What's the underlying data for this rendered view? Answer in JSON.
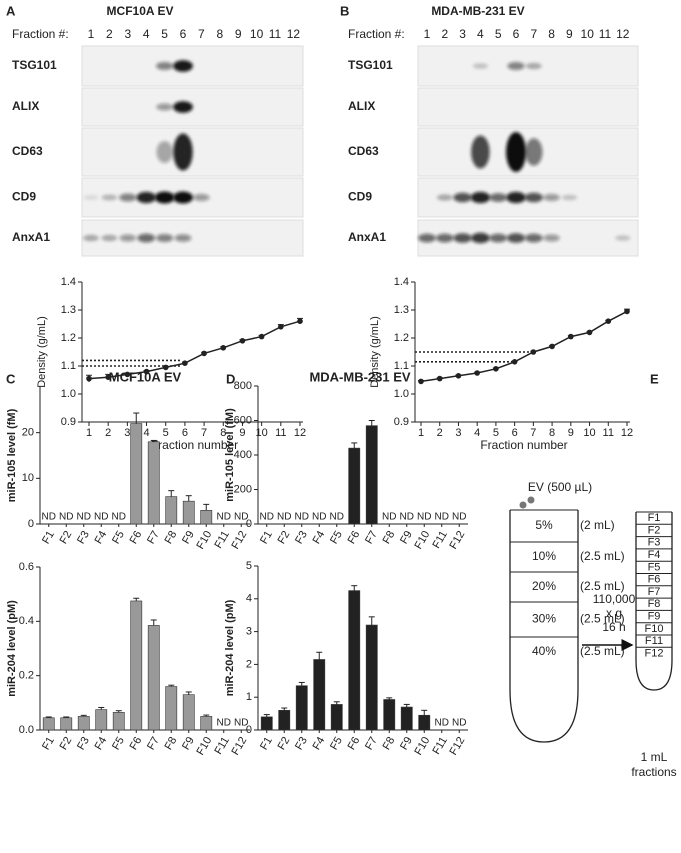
{
  "panels": [
    "A",
    "B",
    "C",
    "D",
    "E"
  ],
  "blots": [
    {
      "title": "MCF10A EV",
      "fraction_label": "Fraction #:",
      "fractions": [
        "1",
        "2",
        "3",
        "4",
        "5",
        "6",
        "7",
        "8",
        "9",
        "10",
        "11",
        "12"
      ],
      "rows": [
        "TSG101",
        "ALIX",
        "CD63",
        "CD9",
        "AnxA1"
      ]
    },
    {
      "title": "MDA-MB-231 EV",
      "fraction_label": "Fraction #:",
      "fractions": [
        "1",
        "2",
        "3",
        "4",
        "5",
        "6",
        "7",
        "8",
        "9",
        "10",
        "11",
        "12"
      ],
      "rows": [
        "TSG101",
        "ALIX",
        "CD63",
        "CD9",
        "AnxA1"
      ]
    }
  ],
  "chart_data": [
    {
      "type": "line",
      "xlabel": "Fraction number",
      "ylabel": "Density (g/mL)",
      "color": "#222222",
      "x": [
        1,
        2,
        3,
        4,
        5,
        6,
        7,
        8,
        9,
        10,
        11,
        12
      ],
      "values": [
        1.055,
        1.06,
        1.07,
        1.08,
        1.095,
        1.11,
        1.145,
        1.165,
        1.19,
        1.205,
        1.24,
        1.26
      ],
      "errors": [
        0.012,
        0.01,
        0.004,
        0.004,
        0.004,
        0.004,
        0.004,
        0.004,
        0.004,
        0.004,
        0.008,
        0.01
      ],
      "hlines": [
        {
          "y": 1.12,
          "x_end": 5.8
        },
        {
          "y": 1.1,
          "x_end": 5.8
        }
      ],
      "xlim": [
        1,
        12
      ],
      "ylim": [
        0.9,
        1.4
      ],
      "xticks": [
        1,
        2,
        3,
        4,
        5,
        6,
        7,
        8,
        9,
        10,
        11,
        12
      ],
      "yticks": [
        0.9,
        {
          "value": 1,
          "label": "1.0"
        },
        1.1,
        1.2,
        1.3,
        1.4
      ]
    },
    {
      "type": "line",
      "xlabel": "Fraction number",
      "ylabel": "Density (g/mL)",
      "color": "#222222",
      "x": [
        1,
        2,
        3,
        4,
        5,
        6,
        7,
        8,
        9,
        10,
        11,
        12
      ],
      "values": [
        1.045,
        1.055,
        1.065,
        1.075,
        1.09,
        1.115,
        1.15,
        1.17,
        1.205,
        1.22,
        1.26,
        1.295
      ],
      "errors": [
        0.003,
        0.003,
        0.003,
        0.003,
        0.003,
        0.003,
        0.003,
        0.003,
        0.003,
        0.003,
        0.003,
        0.008
      ],
      "hlines": [
        {
          "y": 1.15,
          "x_end": 7
        },
        {
          "y": 1.115,
          "x_end": 6
        }
      ],
      "xlim": [
        1,
        12
      ],
      "ylim": [
        0.9,
        1.4
      ],
      "xticks": [
        1,
        2,
        3,
        4,
        5,
        6,
        7,
        8,
        9,
        10,
        11,
        12
      ],
      "yticks": [
        0.9,
        {
          "value": 1,
          "label": "1.0"
        },
        1.1,
        1.2,
        1.3,
        1.4
      ]
    },
    {
      "type": "bar",
      "title": "MCF10A EV",
      "ylabel": "miR-105 level (fM)",
      "color": "#999999",
      "categories": [
        "F1",
        "F2",
        "F3",
        "F4",
        "F5",
        "F6",
        "F7",
        "F8",
        "F9",
        "F10",
        "F11",
        "F12"
      ],
      "values": [
        null,
        null,
        null,
        null,
        null,
        22,
        18,
        6,
        5,
        3,
        null,
        null
      ],
      "value_labels": [
        "ND",
        "ND",
        "ND",
        "ND",
        "ND",
        null,
        null,
        null,
        null,
        null,
        "ND",
        "ND"
      ],
      "errors": [
        null,
        null,
        null,
        null,
        null,
        2.3,
        0.3,
        1.3,
        1.2,
        1.3,
        null,
        null
      ],
      "ylim": [
        0,
        30
      ],
      "yticks": [
        0,
        10,
        20
      ]
    },
    {
      "type": "bar",
      "ylabel": "miR-204 level (pM)",
      "color": "#999999",
      "categories": [
        "F1",
        "F2",
        "F3",
        "F4",
        "F5",
        "F6",
        "F7",
        "F8",
        "F9",
        "F10",
        "F11",
        "F12"
      ],
      "values": [
        0.045,
        0.045,
        0.05,
        0.075,
        0.065,
        0.475,
        0.385,
        0.16,
        0.13,
        0.05,
        null,
        null
      ],
      "value_labels": [
        null,
        null,
        null,
        null,
        null,
        null,
        null,
        null,
        null,
        null,
        "ND",
        "ND"
      ],
      "errors": [
        0.003,
        0.003,
        0.004,
        0.008,
        0.006,
        0.01,
        0.02,
        0.005,
        0.01,
        0.005,
        null,
        null
      ],
      "ylim": [
        0,
        0.6
      ],
      "yticks": [
        {
          "value": 0,
          "label": "0.0"
        },
        0.2,
        0.4,
        0.6
      ]
    },
    {
      "type": "bar",
      "title": "MDA-MB-231 EV",
      "ylabel": "miR-105 level (fM)",
      "color": "#222222",
      "categories": [
        "F1",
        "F2",
        "F3",
        "F4",
        "F5",
        "F6",
        "F7",
        "F8",
        "F9",
        "F10",
        "F11",
        "F12"
      ],
      "values": [
        null,
        null,
        null,
        null,
        null,
        440,
        570,
        null,
        null,
        null,
        null,
        null
      ],
      "value_labels": [
        "ND",
        "ND",
        "ND",
        "ND",
        "ND",
        null,
        null,
        "ND",
        "ND",
        "ND",
        "ND",
        "ND"
      ],
      "errors": [
        null,
        null,
        null,
        null,
        null,
        30,
        30,
        null,
        null,
        null,
        null,
        null
      ],
      "ylim": [
        0,
        800
      ],
      "yticks": [
        0,
        200,
        400,
        600,
        800
      ]
    },
    {
      "type": "bar",
      "ylabel": "miR-204 level (pM)",
      "color": "#222222",
      "categories": [
        "F1",
        "F2",
        "F3",
        "F4",
        "F5",
        "F6",
        "F7",
        "F8",
        "F9",
        "F10",
        "F11",
        "F12"
      ],
      "values": [
        0.4,
        0.6,
        1.35,
        2.15,
        0.78,
        4.25,
        3.2,
        0.93,
        0.7,
        0.45,
        null,
        null
      ],
      "value_labels": [
        null,
        null,
        null,
        null,
        null,
        null,
        null,
        null,
        null,
        null,
        "ND",
        "ND"
      ],
      "errors": [
        0.07,
        0.07,
        0.1,
        0.22,
        0.08,
        0.15,
        0.25,
        0.05,
        0.08,
        0.15,
        null,
        null
      ],
      "ylim": [
        0,
        5
      ],
      "yticks": [
        0,
        1,
        2,
        3,
        4,
        5
      ]
    }
  ],
  "diagram": {
    "sample": "EV (500 µL)",
    "layers": [
      {
        "percent": "5%",
        "volume": "(2 mL)"
      },
      {
        "percent": "10%",
        "volume": "(2.5 mL)"
      },
      {
        "percent": "20%",
        "volume": "(2.5 mL)"
      },
      {
        "percent": "30%",
        "volume": "(2.5 mL)"
      },
      {
        "percent": "40%",
        "volume": "(2.5 mL)"
      }
    ],
    "spin": [
      "110,000",
      "x g",
      "16 h"
    ],
    "fractions": [
      "F1",
      "F2",
      "F3",
      "F4",
      "F5",
      "F6",
      "F7",
      "F8",
      "F9",
      "F10",
      "F11",
      "F12"
    ],
    "caption": [
      "1 mL",
      "fractions"
    ]
  }
}
